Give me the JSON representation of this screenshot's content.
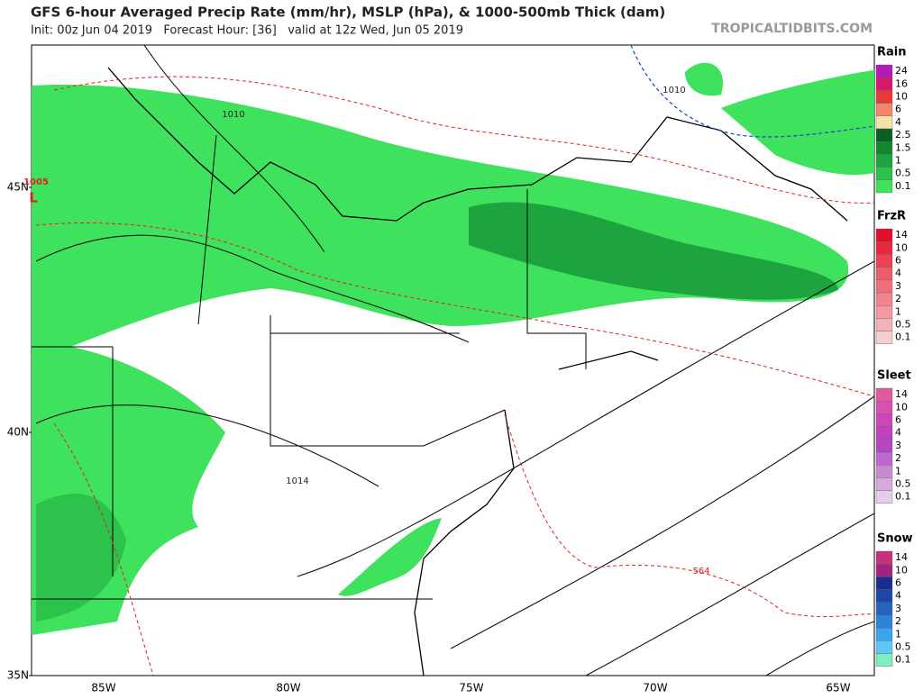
{
  "header": {
    "title": "GFS 6-hour Averaged Precip Rate (mm/hr), MSLP (hPa), & 1000-500mb Thick (dam)",
    "subtitle": "Init: 00z Jun 04 2019   Forecast Hour: [36]   valid at 12z Wed, Jun 05 2019",
    "watermark": "TROPICALTIDBITS.COM"
  },
  "map": {
    "lat_labels": [
      "45N",
      "40N",
      "35N"
    ],
    "lon_labels": [
      "85W",
      "80W",
      "75W",
      "70W",
      "65W"
    ],
    "contour_labels": [
      "1010",
      "1010",
      "1005",
      "1014",
      "564"
    ],
    "low_symbol": "L"
  },
  "legend": [
    {
      "title": "Rain",
      "labels": [
        "24",
        "16",
        "10",
        "6",
        "4",
        "2.5",
        "1.5",
        "1",
        "0.5",
        "0.1"
      ],
      "colors": [
        "#b21ab2",
        "#d8186e",
        "#e8383a",
        "#f2876a",
        "#f5e2a6",
        "#0b5e26",
        "#14852f",
        "#1ea43e",
        "#2cc24c",
        "#3ee25c"
      ]
    },
    {
      "title": "FrzR",
      "labels": [
        "14",
        "10",
        "6",
        "4",
        "3",
        "2",
        "1",
        "0.5",
        "0.1"
      ],
      "colors": [
        "#e0102a",
        "#e6283e",
        "#ea4250",
        "#ee5c66",
        "#f0707a",
        "#f2848e",
        "#f498a2",
        "#f6b2ba",
        "#f8cdd2"
      ]
    },
    {
      "title": "Sleet",
      "labels": [
        "14",
        "10",
        "6",
        "4",
        "3",
        "2",
        "1",
        "0.5",
        "0.1"
      ],
      "colors": [
        "#e05aa0",
        "#d850b0",
        "#cc48b8",
        "#c040c0",
        "#b446c4",
        "#bc68cc",
        "#c888d4",
        "#d6aade",
        "#e6cceb"
      ]
    },
    {
      "title": "Snow",
      "labels": [
        "14",
        "10",
        "6",
        "4",
        "3",
        "2",
        "1",
        "0.5",
        "0.1"
      ],
      "colors": [
        "#c8307a",
        "#a02480",
        "#1c2c90",
        "#1e46a8",
        "#2264c0",
        "#2a84d8",
        "#3aa4ee",
        "#5cc8f8",
        "#7ef0c0"
      ]
    }
  ]
}
